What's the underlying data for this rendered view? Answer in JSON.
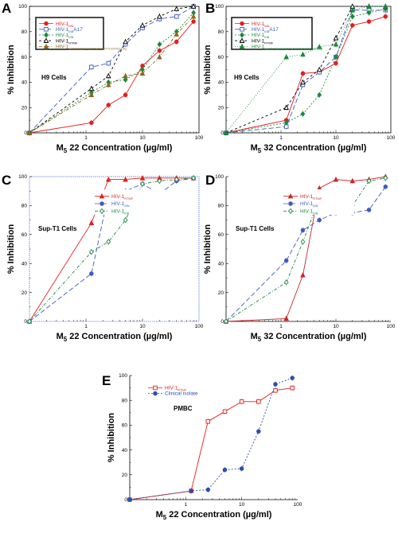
{
  "chart_data": [
    {
      "type": "line",
      "panel": "A",
      "cell_label": "H9 Cells",
      "xlabel": "M_5 22 Concentration (µg/ml)",
      "ylabel": "% Inhibition",
      "xscale": "log",
      "xlim": [
        0.1,
        100
      ],
      "ylim": [
        0,
        100
      ],
      "yticks": [
        0,
        20,
        40,
        60,
        80,
        100
      ],
      "xticks": [
        1,
        10,
        100
      ],
      "legend_position": "top-left",
      "series": [
        {
          "name": "HIV-1",
          "subscript": "MN",
          "color": "#e41e1e",
          "marker": "circle",
          "dash": "",
          "x": [
            0.1,
            1.25,
            2.5,
            5,
            10,
            20,
            40,
            80
          ],
          "y": [
            0,
            8,
            22,
            30,
            53,
            65,
            72,
            88
          ]
        },
        {
          "name": "HIV-1",
          "subscript": "IIIB",
          "suffix": "A17",
          "color": "#3c5bbf",
          "marker": "square-open",
          "dash": "6,3",
          "x": [
            0.1,
            1.25,
            2.5,
            5,
            10,
            20,
            40,
            80
          ],
          "y": [
            0,
            52,
            55,
            70,
            83,
            90,
            92,
            100
          ]
        },
        {
          "name": "HIV-1",
          "subscript": "IIIB",
          "color": "#1a8a3c",
          "marker": "diamond",
          "dash": "2,2",
          "x": [
            0.1,
            1.25,
            2.5,
            5,
            10,
            20,
            40,
            80
          ],
          "y": [
            0,
            32,
            40,
            42,
            50,
            70,
            80,
            95
          ]
        },
        {
          "name": "HIV-1",
          "subscript": "RTMF",
          "color": "#000000",
          "marker": "triangle-open",
          "dash": "3,3",
          "x": [
            0.1,
            1.25,
            2.5,
            5,
            10,
            20,
            40,
            80
          ],
          "y": [
            0,
            35,
            45,
            72,
            85,
            92,
            98,
            100
          ]
        },
        {
          "name": "HIV-1",
          "subscript": "L100I/M184V/D67N/K70R/T215Y/K219Q",
          "color": "#8a6a1a",
          "marker": "triangle",
          "dash": "4,2,1,2",
          "x": [
            0.1,
            1.25,
            2.5,
            5,
            10,
            20,
            40,
            80
          ],
          "y": [
            0,
            30,
            38,
            45,
            47,
            60,
            78,
            92
          ]
        }
      ]
    },
    {
      "type": "line",
      "panel": "B",
      "cell_label": "H9 Cells",
      "xlabel": "M_5 32 Concentration (µg/ml)",
      "ylabel": "% Inhibition",
      "xscale": "log",
      "xlim": [
        0.1,
        100
      ],
      "ylim": [
        0,
        100
      ],
      "yticks": [
        0,
        20,
        40,
        60,
        80,
        100
      ],
      "xticks": [
        1,
        10,
        100
      ],
      "legend_position": "top-left",
      "series": [
        {
          "name": "HIV-1",
          "subscript": "MN",
          "color": "#e41e1e",
          "marker": "circle",
          "dash": "",
          "x": [
            0.1,
            1.25,
            2.5,
            5,
            10,
            20,
            40,
            80
          ],
          "y": [
            0,
            10,
            47,
            48,
            55,
            85,
            88,
            92
          ]
        },
        {
          "name": "HIV-1",
          "subscript": "IIIB",
          "suffix": "A17",
          "color": "#3c5bbf",
          "marker": "square-open",
          "dash": "6,3",
          "x": [
            0.1,
            1.25,
            2.5,
            5,
            10,
            20,
            40,
            80
          ],
          "y": [
            0,
            5,
            38,
            48,
            60,
            97,
            97,
            97
          ]
        },
        {
          "name": "HIV-1",
          "subscript": "IIIB",
          "color": "#1a8a3c",
          "marker": "diamond",
          "dash": "2,2",
          "x": [
            0.1,
            1.25,
            2.5,
            5,
            10,
            20,
            40,
            80
          ],
          "y": [
            0,
            8,
            15,
            30,
            60,
            92,
            95,
            98
          ]
        },
        {
          "name": "HIV-1",
          "subscript": "RTMF",
          "color": "#000000",
          "marker": "triangle-open",
          "dash": "3,3",
          "x": [
            0.1,
            1.25,
            2.5,
            5,
            10,
            20,
            40,
            80
          ],
          "y": [
            0,
            20,
            40,
            50,
            75,
            100,
            100,
            100
          ]
        },
        {
          "name": "HIV-1",
          "subscript": "L100I/M184V/D67N/K70R/T215Y/K219Q",
          "color": "#1a8a3c",
          "marker": "triangle",
          "dash": "1,2",
          "x": [
            0.1,
            1.25,
            2.5,
            5,
            10,
            20,
            40,
            80
          ],
          "y": [
            0,
            60,
            62,
            68,
            70,
            97,
            100,
            100
          ]
        }
      ]
    },
    {
      "type": "line",
      "panel": "C",
      "cell_label": "Sup-T1 Cells",
      "xlabel": "M_5 22 Concentration (µg/ml)",
      "ylabel": "% Inhibition",
      "xscale": "log",
      "xlim": [
        0.1,
        100
      ],
      "ylim": [
        0,
        100
      ],
      "yticks": [
        0,
        20,
        40,
        60,
        80,
        100
      ],
      "xticks": [
        1,
        10,
        100
      ],
      "legend_position": "top-right",
      "series": [
        {
          "name": "HIV-1",
          "subscript": "RTMF",
          "color": "#e41e1e",
          "marker": "triangle",
          "dash": "",
          "x": [
            0.1,
            1.25,
            2.5,
            5,
            10,
            20,
            40,
            80
          ],
          "y": [
            0,
            68,
            98,
            98,
            99,
            99,
            99,
            99
          ]
        },
        {
          "name": "HIV-1",
          "subscript": "MN",
          "color": "#3c5bbf",
          "marker": "circle",
          "dash": "6,3",
          "x": [
            0.1,
            1.25,
            2.5,
            5,
            10,
            20,
            40,
            80
          ],
          "y": [
            0,
            33,
            88,
            90,
            95,
            88,
            97,
            99
          ]
        },
        {
          "name": "HIV-1",
          "subscript": "IIIB",
          "color": "#1a8a3c",
          "marker": "diamond-open",
          "dash": "4,2,1,2",
          "x": [
            0.1,
            1.25,
            2.5,
            5,
            10,
            20,
            40,
            80
          ],
          "y": [
            0,
            48,
            55,
            70,
            95,
            97,
            98,
            99
          ]
        }
      ]
    },
    {
      "type": "line",
      "panel": "D",
      "cell_label": "Sup-T1 Cells",
      "xlabel": "M_5 32 Concentration (µg/ml)",
      "ylabel": "% Inhibition",
      "xscale": "log",
      "xlim": [
        0.1,
        100
      ],
      "ylim": [
        0,
        100
      ],
      "yticks": [
        0,
        20,
        40,
        60,
        80,
        100
      ],
      "xticks": [
        1,
        10,
        100
      ],
      "legend_position": "top-right",
      "series": [
        {
          "name": "HIV-1",
          "subscript": "RTMF",
          "color": "#c8282c",
          "marker": "triangle",
          "dash": "",
          "x": [
            0.1,
            1.25,
            2.5,
            5,
            10,
            20,
            40,
            80
          ],
          "y": [
            0,
            2,
            32,
            92,
            98,
            97,
            98,
            100
          ]
        },
        {
          "name": "HIV-1",
          "subscript": "MN",
          "color": "#3c5bbf",
          "marker": "circle",
          "dash": "6,3",
          "x": [
            0.1,
            1.25,
            2.5,
            5,
            10,
            20,
            40,
            80
          ],
          "y": [
            0,
            42,
            63,
            70,
            75,
            75,
            77,
            93
          ]
        },
        {
          "name": "HIV-1",
          "subscript": "IIIB",
          "color": "#1a8a3c",
          "marker": "diamond-open",
          "dash": "4,2,1,2",
          "x": [
            0.1,
            1.25,
            2.5,
            5,
            10,
            20,
            40,
            80
          ],
          "y": [
            0,
            27,
            55,
            85,
            82,
            80,
            97,
            99
          ]
        }
      ]
    },
    {
      "type": "line",
      "panel": "E",
      "cell_label": "PMBC",
      "xlabel": "M_5 22 Concentration (µg/ml)",
      "ylabel": "% Inhibition",
      "xscale": "log",
      "xlim": [
        0.1,
        100
      ],
      "ylim": [
        0,
        100
      ],
      "yticks": [
        0,
        20,
        40,
        60,
        80,
        100
      ],
      "xticks": [
        1,
        10,
        100
      ],
      "legend_position": "top-left",
      "series": [
        {
          "name": "HIV-1",
          "subscript": "RTMF",
          "color": "#e41e1e",
          "marker": "square-open",
          "dash": "",
          "x": [
            0.1,
            1.25,
            2.5,
            5,
            10,
            20,
            40,
            80
          ],
          "y": [
            0,
            7,
            63,
            71,
            79,
            79,
            88,
            90
          ]
        },
        {
          "name": "Clinical isolate",
          "subscript": "",
          "color": "#2a4fb0",
          "marker": "circle",
          "dash": "2,2",
          "x": [
            0.1,
            1.25,
            2.5,
            5,
            10,
            20,
            40,
            80
          ],
          "y": [
            0,
            7,
            8,
            24,
            25,
            55,
            93,
            98
          ]
        }
      ]
    }
  ]
}
